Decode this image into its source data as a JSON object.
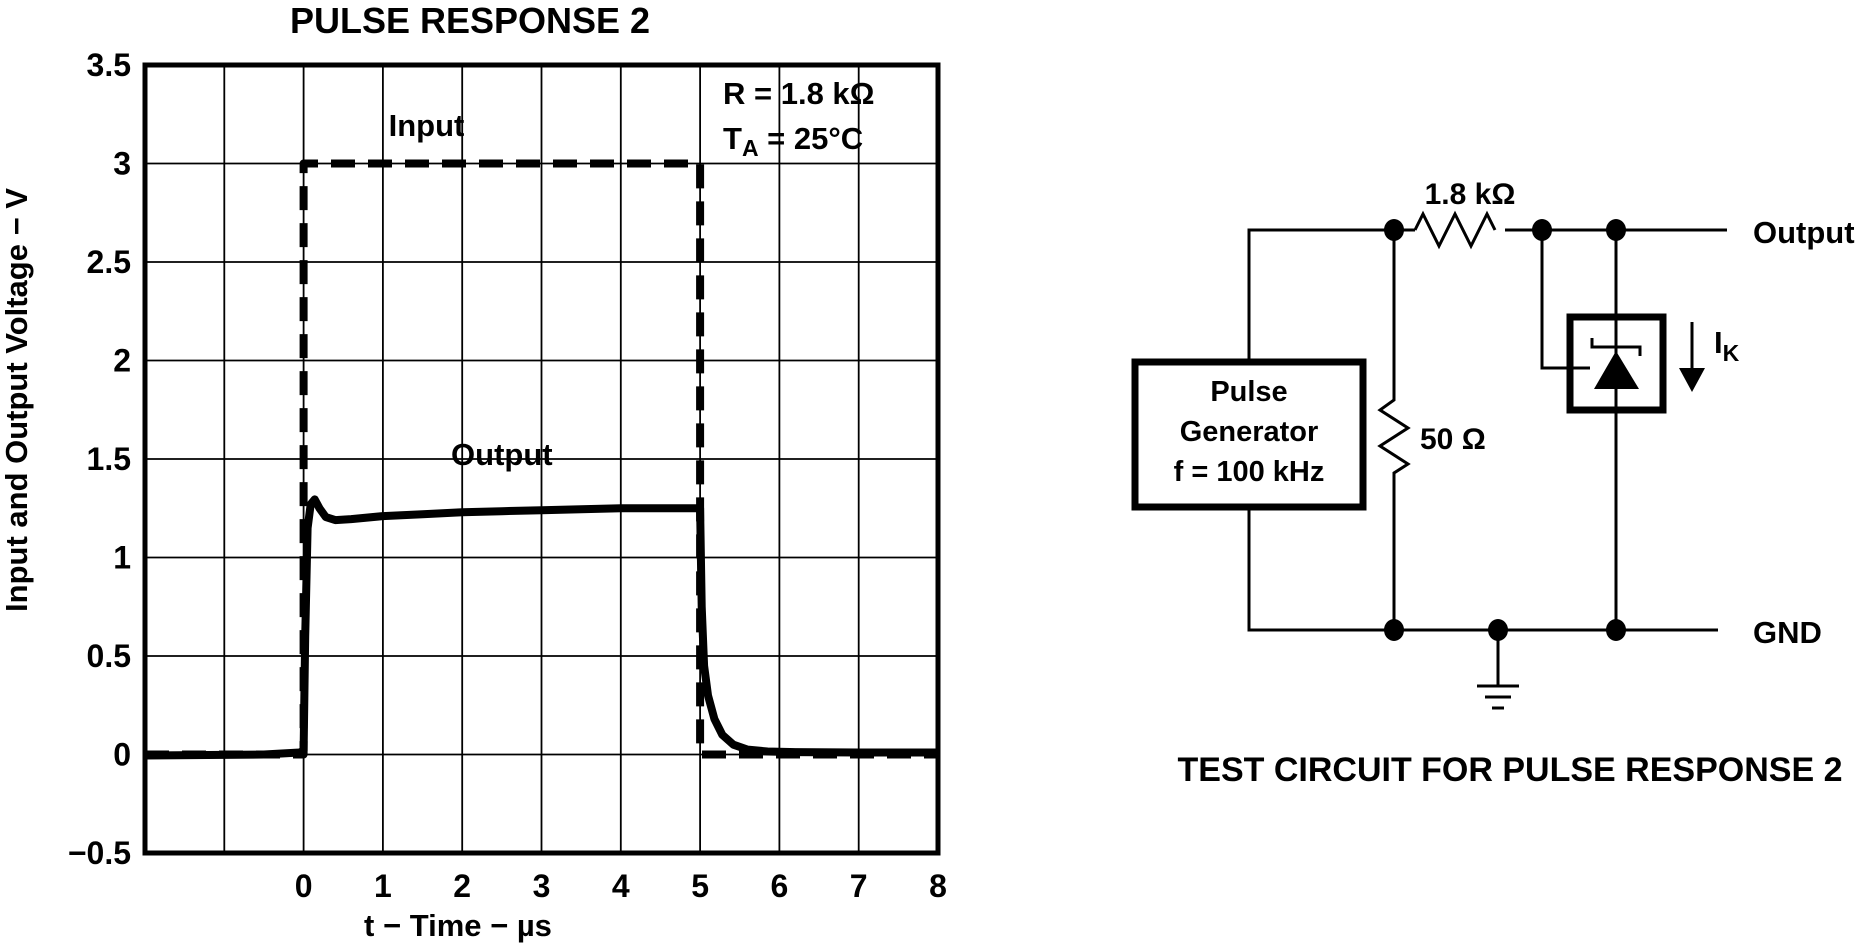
{
  "page": {
    "background": "#ffffff",
    "ink": "#000000"
  },
  "chart_data": {
    "type": "line",
    "title": "PULSE RESPONSE 2",
    "xlabel": "t − Time − µs",
    "ylabel": "Input and Output Voltage − V",
    "xlim": [
      -2,
      8
    ],
    "ylim": [
      -0.5,
      3.5
    ],
    "grid": true,
    "legend_position": "inline-labels",
    "x_ticks": [
      {
        "v": 0,
        "label": "0"
      },
      {
        "v": 1,
        "label": "1"
      },
      {
        "v": 2,
        "label": "2"
      },
      {
        "v": 3,
        "label": "3"
      },
      {
        "v": 4,
        "label": "4"
      },
      {
        "v": 5,
        "label": "5"
      },
      {
        "v": 6,
        "label": "6"
      },
      {
        "v": 7,
        "label": "7"
      },
      {
        "v": 8,
        "label": "8"
      }
    ],
    "y_ticks": [
      {
        "v": 3.5,
        "label": "3.5"
      },
      {
        "v": 3,
        "label": "3"
      },
      {
        "v": 2.5,
        "label": "2.5"
      },
      {
        "v": 2,
        "label": "2"
      },
      {
        "v": 1.5,
        "label": "1.5"
      },
      {
        "v": 1,
        "label": "1"
      },
      {
        "v": 0.5,
        "label": "0.5"
      },
      {
        "v": 0,
        "label": "0"
      },
      {
        "v": -0.5,
        "label": "−0.5"
      }
    ],
    "conditions": {
      "line1": "R = 1.8 kΩ",
      "t_prefix": "T",
      "t_sub": "A",
      "t_rest": " = 25°C"
    },
    "series": [
      {
        "name": "Input",
        "style": "dashed",
        "width": 8,
        "label_at": [
          1.55,
          3.14
        ],
        "x": [
          -2,
          0,
          0,
          5,
          5,
          8
        ],
        "y": [
          0,
          0,
          3,
          3,
          0,
          0
        ]
      },
      {
        "name": "Output",
        "style": "solid",
        "width": 8,
        "label_at": [
          2.5,
          1.47
        ],
        "x": [
          -2,
          -0.5,
          -0.05,
          0,
          0.02,
          0.05,
          0.09,
          0.14,
          0.2,
          0.28,
          0.4,
          0.6,
          1,
          1.5,
          2,
          2.5,
          3,
          3.5,
          4,
          4.5,
          5,
          5.02,
          5.05,
          5.1,
          5.18,
          5.28,
          5.42,
          5.6,
          5.85,
          6.2,
          7,
          8
        ],
        "y": [
          -0.005,
          0,
          0.01,
          0.02,
          0.6,
          1.15,
          1.27,
          1.295,
          1.25,
          1.205,
          1.19,
          1.195,
          1.21,
          1.22,
          1.23,
          1.235,
          1.24,
          1.245,
          1.25,
          1.25,
          1.25,
          0.75,
          0.45,
          0.3,
          0.18,
          0.1,
          0.05,
          0.025,
          0.015,
          0.012,
          0.01,
          0.01
        ]
      }
    ]
  },
  "circuit": {
    "caption": "TEST CIRCUIT FOR PULSE RESPONSE 2",
    "pulse_generator": {
      "line1": "Pulse",
      "line2": "Generator",
      "line3": "f = 100 kHz"
    },
    "series_resistor_label": "1.8 kΩ",
    "shunt_resistor_label": "50 Ω",
    "output_label": "Output",
    "gnd_label": "GND",
    "cathode_current": {
      "base": "I",
      "sub": "K"
    }
  }
}
